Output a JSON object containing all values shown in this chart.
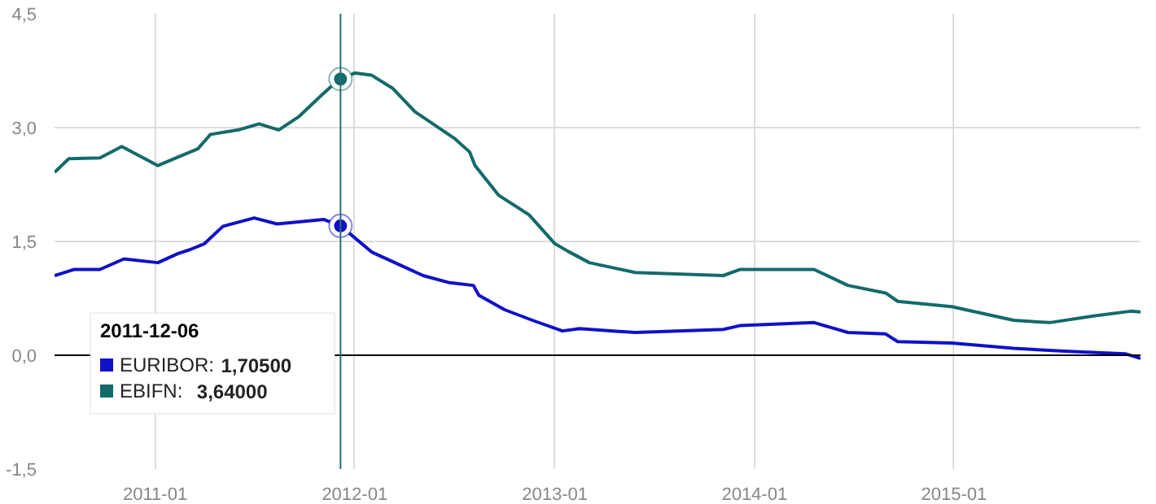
{
  "chart_data": {
    "type": "line",
    "xlim": [
      "2010-07-01",
      "2015-12-08"
    ],
    "xticks": [
      "2011-01",
      "2012-01",
      "2013-01",
      "2014-01",
      "2015-01"
    ],
    "ylim": [
      -1.5,
      4.5
    ],
    "yticks": [
      {
        "value": -1.5,
        "label": "-1,5"
      },
      {
        "value": 0,
        "label": "0,0"
      },
      {
        "value": 1.5,
        "label": "1,5"
      },
      {
        "value": 3.0,
        "label": "3,0"
      },
      {
        "value": 4.5,
        "label": "4,5"
      }
    ],
    "grid": true,
    "legend": "bottom left",
    "legend_title": "2011-12-06",
    "line_style": "solid",
    "ref_lines": [
      {
        "axis": "y",
        "value": 0,
        "color": "#000000"
      },
      {
        "axis": "x",
        "value": "2011-12-06",
        "color": "#2a6e6e"
      }
    ],
    "annotations": [
      "1,70500",
      "3,64000"
    ],
    "series": [
      {
        "name": "EURIBOR:",
        "color": "#1010c8",
        "x": [
          "2010-07-01",
          "2010-08-05",
          "2010-09-22",
          "2010-11-05",
          "2011-01-06",
          "2011-02-12",
          "2011-03-05",
          "2011-04-01",
          "2011-05-05",
          "2011-07-01",
          "2011-08-12",
          "2011-11-05",
          "2011-12-06",
          "2012-02-01",
          "2012-05-05",
          "2012-06-20",
          "2012-08-05",
          "2012-08-15",
          "2012-10-01",
          "2012-11-25",
          "2013-01-15",
          "2013-02-15",
          "2013-05-28",
          "2013-11-05",
          "2013-12-05",
          "2014-04-20",
          "2014-06-21",
          "2014-08-29",
          "2014-09-20",
          "2014-12-28",
          "2015-04-20",
          "2015-07-30",
          "2015-11-10",
          "2015-12-08"
        ],
        "values": [
          1.05,
          1.13,
          1.13,
          1.27,
          1.22,
          1.34,
          1.39,
          1.47,
          1.7,
          1.81,
          1.73,
          1.79,
          1.705,
          1.36,
          1.05,
          0.96,
          0.92,
          0.79,
          0.6,
          0.45,
          0.32,
          0.35,
          0.3,
          0.34,
          0.39,
          0.43,
          0.3,
          0.28,
          0.18,
          0.16,
          0.09,
          0.05,
          0.02,
          -0.04
        ]
      },
      {
        "name": "EBIFN:",
        "color": "#136a6a",
        "x": [
          "2010-07-01",
          "2010-07-27",
          "2010-09-22",
          "2010-11-01",
          "2011-01-06",
          "2011-02-21",
          "2011-03-20",
          "2011-04-12",
          "2011-06-02",
          "2011-07-10",
          "2011-08-15",
          "2011-09-20",
          "2011-11-03",
          "2011-11-20",
          "2011-12-06",
          "2012-01-01",
          "2012-02-01",
          "2012-03-10",
          "2012-04-20",
          "2012-07-01",
          "2012-07-29",
          "2012-08-08",
          "2012-09-20",
          "2012-11-15",
          "2013-01-01",
          "2013-01-25",
          "2013-03-05",
          "2013-05-28",
          "2013-11-05",
          "2013-12-05",
          "2014-04-20",
          "2014-06-21",
          "2014-08-29",
          "2014-09-20",
          "2014-12-28",
          "2015-04-20",
          "2015-06-25",
          "2015-09-15",
          "2015-11-20",
          "2015-12-08"
        ],
        "values": [
          2.41,
          2.59,
          2.6,
          2.75,
          2.5,
          2.64,
          2.72,
          2.91,
          2.97,
          3.05,
          2.97,
          3.14,
          3.44,
          3.55,
          3.64,
          3.72,
          3.69,
          3.52,
          3.21,
          2.86,
          2.68,
          2.5,
          2.11,
          1.85,
          1.47,
          1.37,
          1.22,
          1.09,
          1.05,
          1.13,
          1.13,
          0.92,
          0.82,
          0.71,
          0.64,
          0.46,
          0.43,
          0.52,
          0.58,
          0.57
        ]
      }
    ]
  }
}
